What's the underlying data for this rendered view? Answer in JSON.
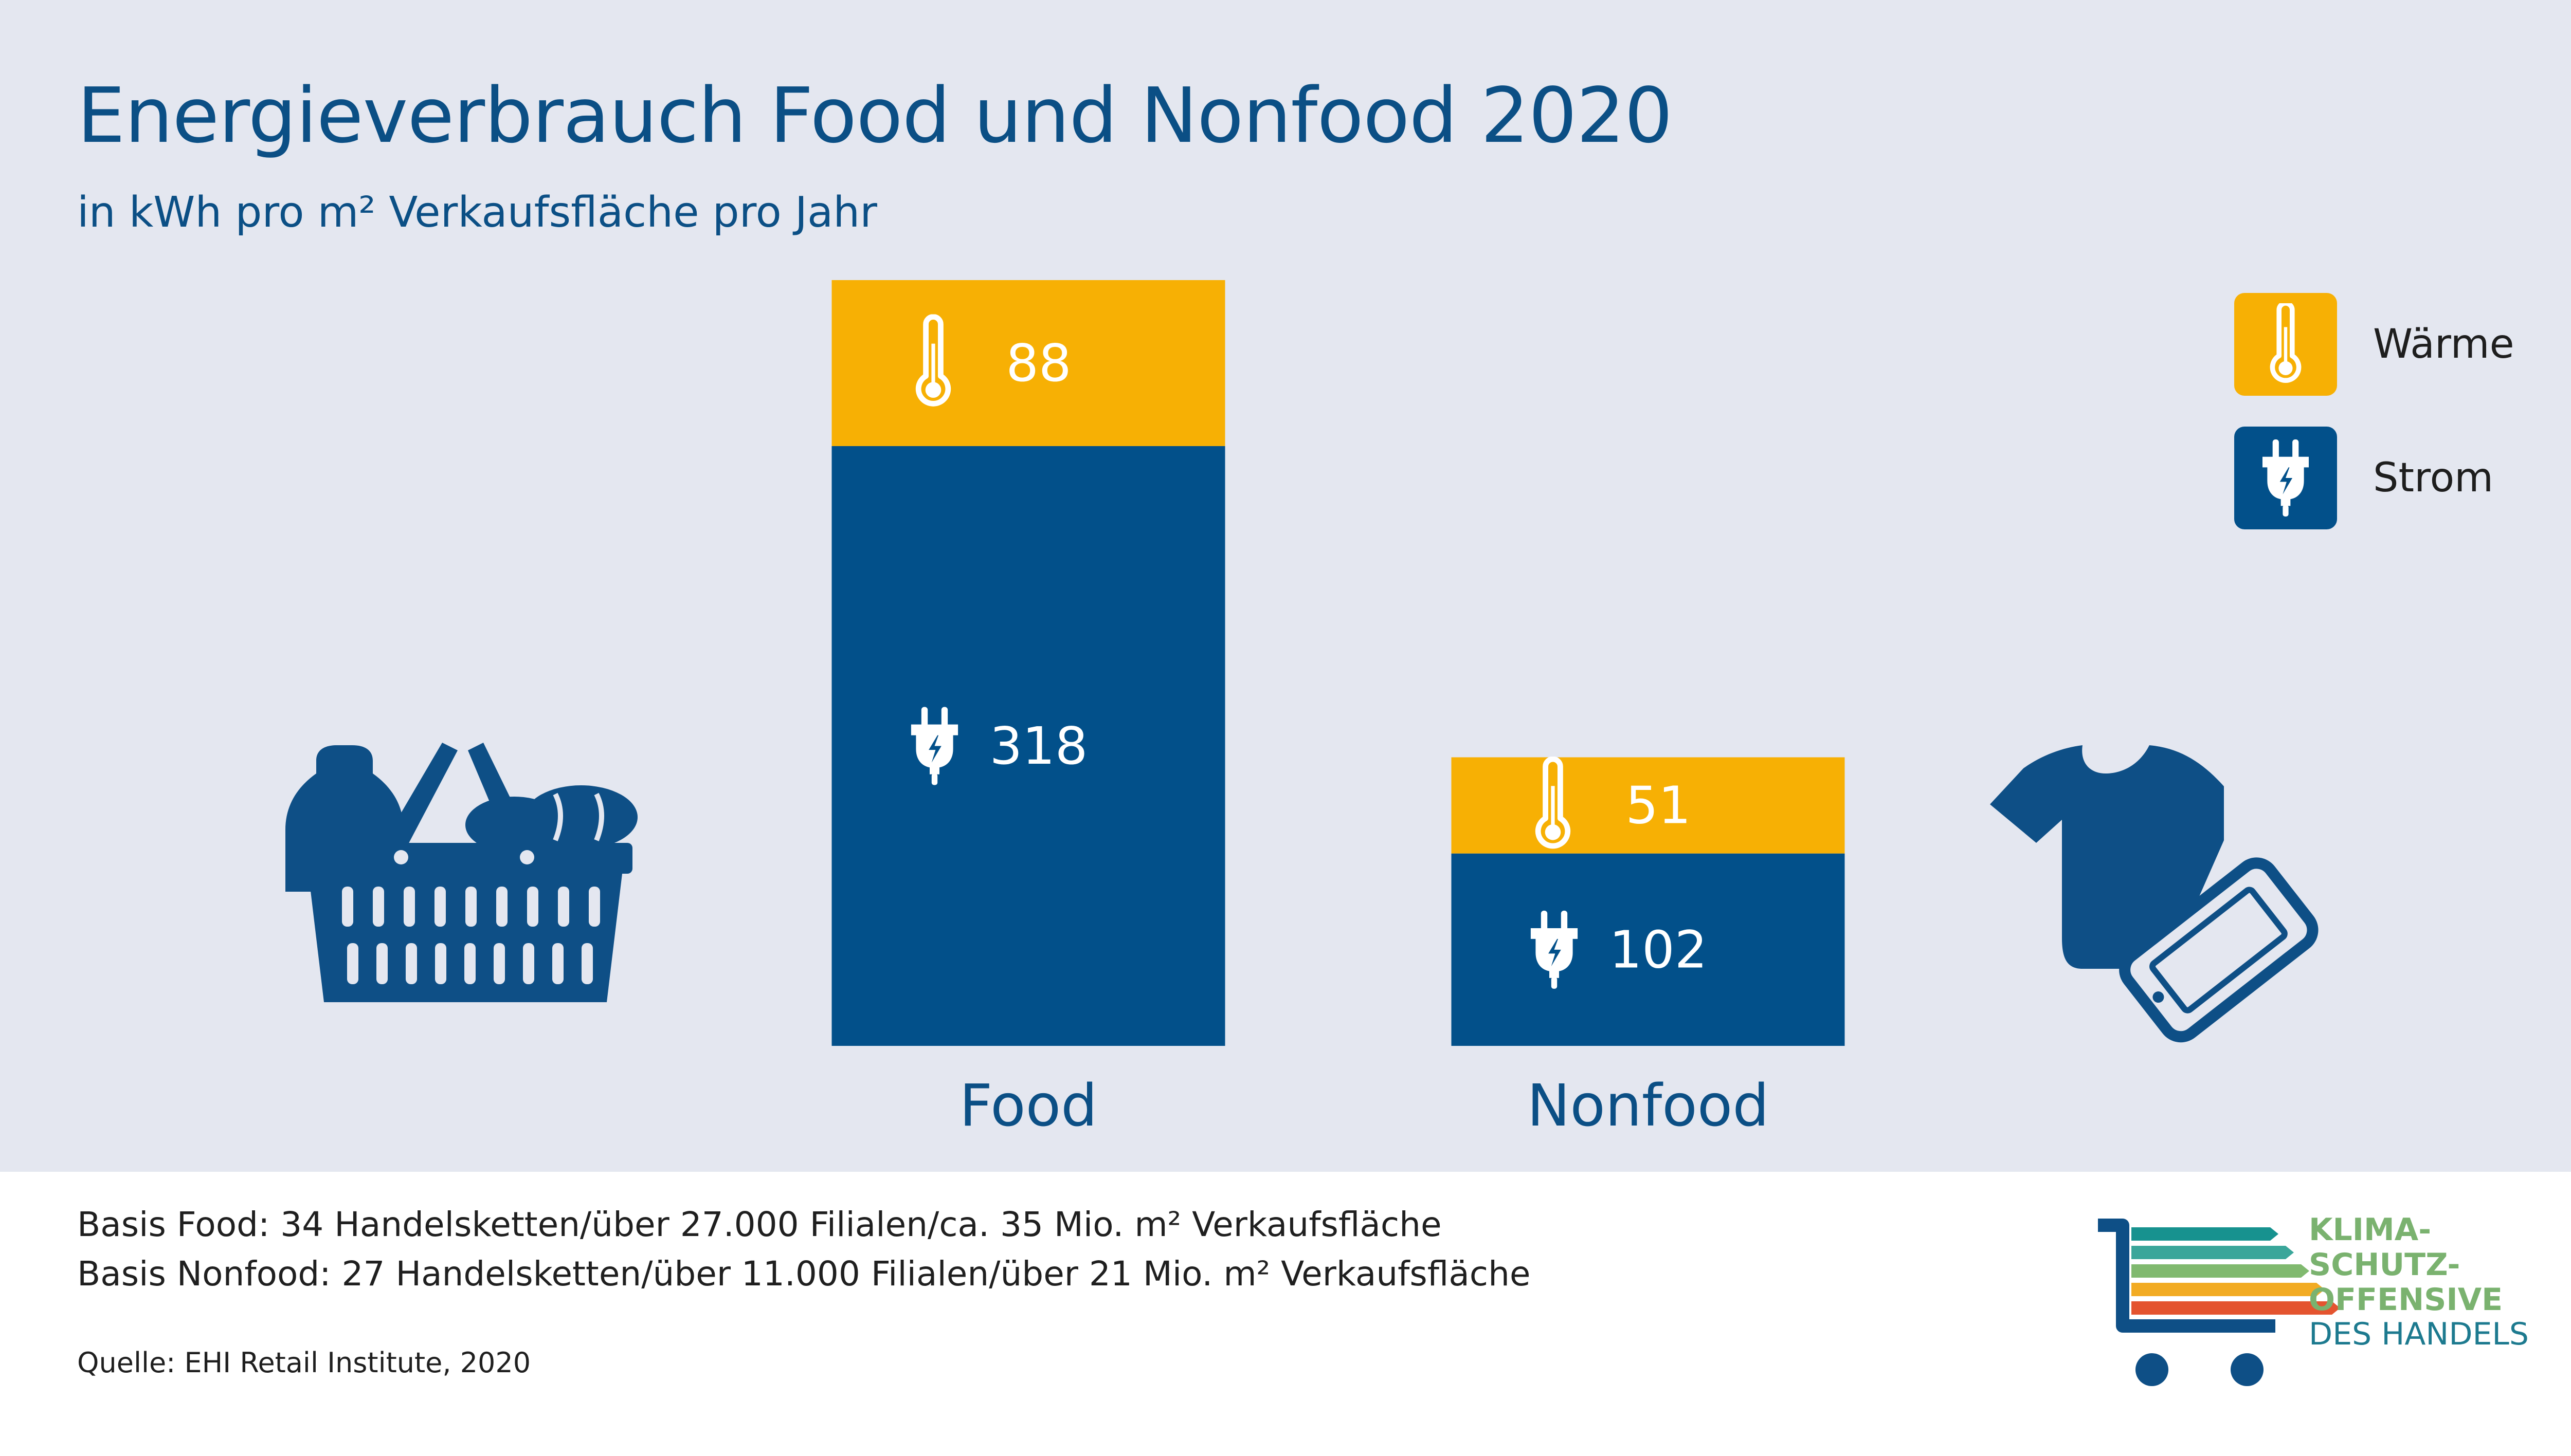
{
  "title": "Energieverbrauch Food und Nonfood 2020",
  "subtitle": "in kWh pro m² Verkaufsfläche pro Jahr",
  "legend": [
    {
      "label": "Wärme",
      "icon": "thermometer-icon",
      "color": "#f7b004"
    },
    {
      "label": "Strom",
      "icon": "plug-icon",
      "color": "#02508a"
    }
  ],
  "chart_data": {
    "type": "bar",
    "stacked": true,
    "categories": [
      "Food",
      "Nonfood"
    ],
    "series": [
      {
        "name": "Strom",
        "values": [
          318,
          102
        ],
        "color": "#02508a"
      },
      {
        "name": "Wärme",
        "values": [
          88,
          51
        ],
        "color": "#f7b004"
      }
    ],
    "category_icons": [
      "basket-icon",
      "tshirt-and-phone-icon"
    ],
    "ylim": [
      0,
      406
    ]
  },
  "footer": {
    "basis_food": "Basis Food: 34 Handelsketten/über 27.000 Filialen/ca. 35 Mio. m² Verkaufsfläche",
    "basis_nonfood": "Basis Nonfood: 27 Handelsketten/über 11.000 Filialen/über 21 Mio. m² Verkaufsfläche",
    "source": "Quelle: EHI Retail Institute, 2020"
  },
  "logo": {
    "line1": "KLIMA-",
    "line2": "SCHUTZ-",
    "line3": "OFFENSIVE",
    "line4": "DES HANDELS",
    "bar_colors": [
      "#17928f",
      "#3aa69a",
      "#80b96f",
      "#f2ab23",
      "#e4542f"
    ]
  }
}
